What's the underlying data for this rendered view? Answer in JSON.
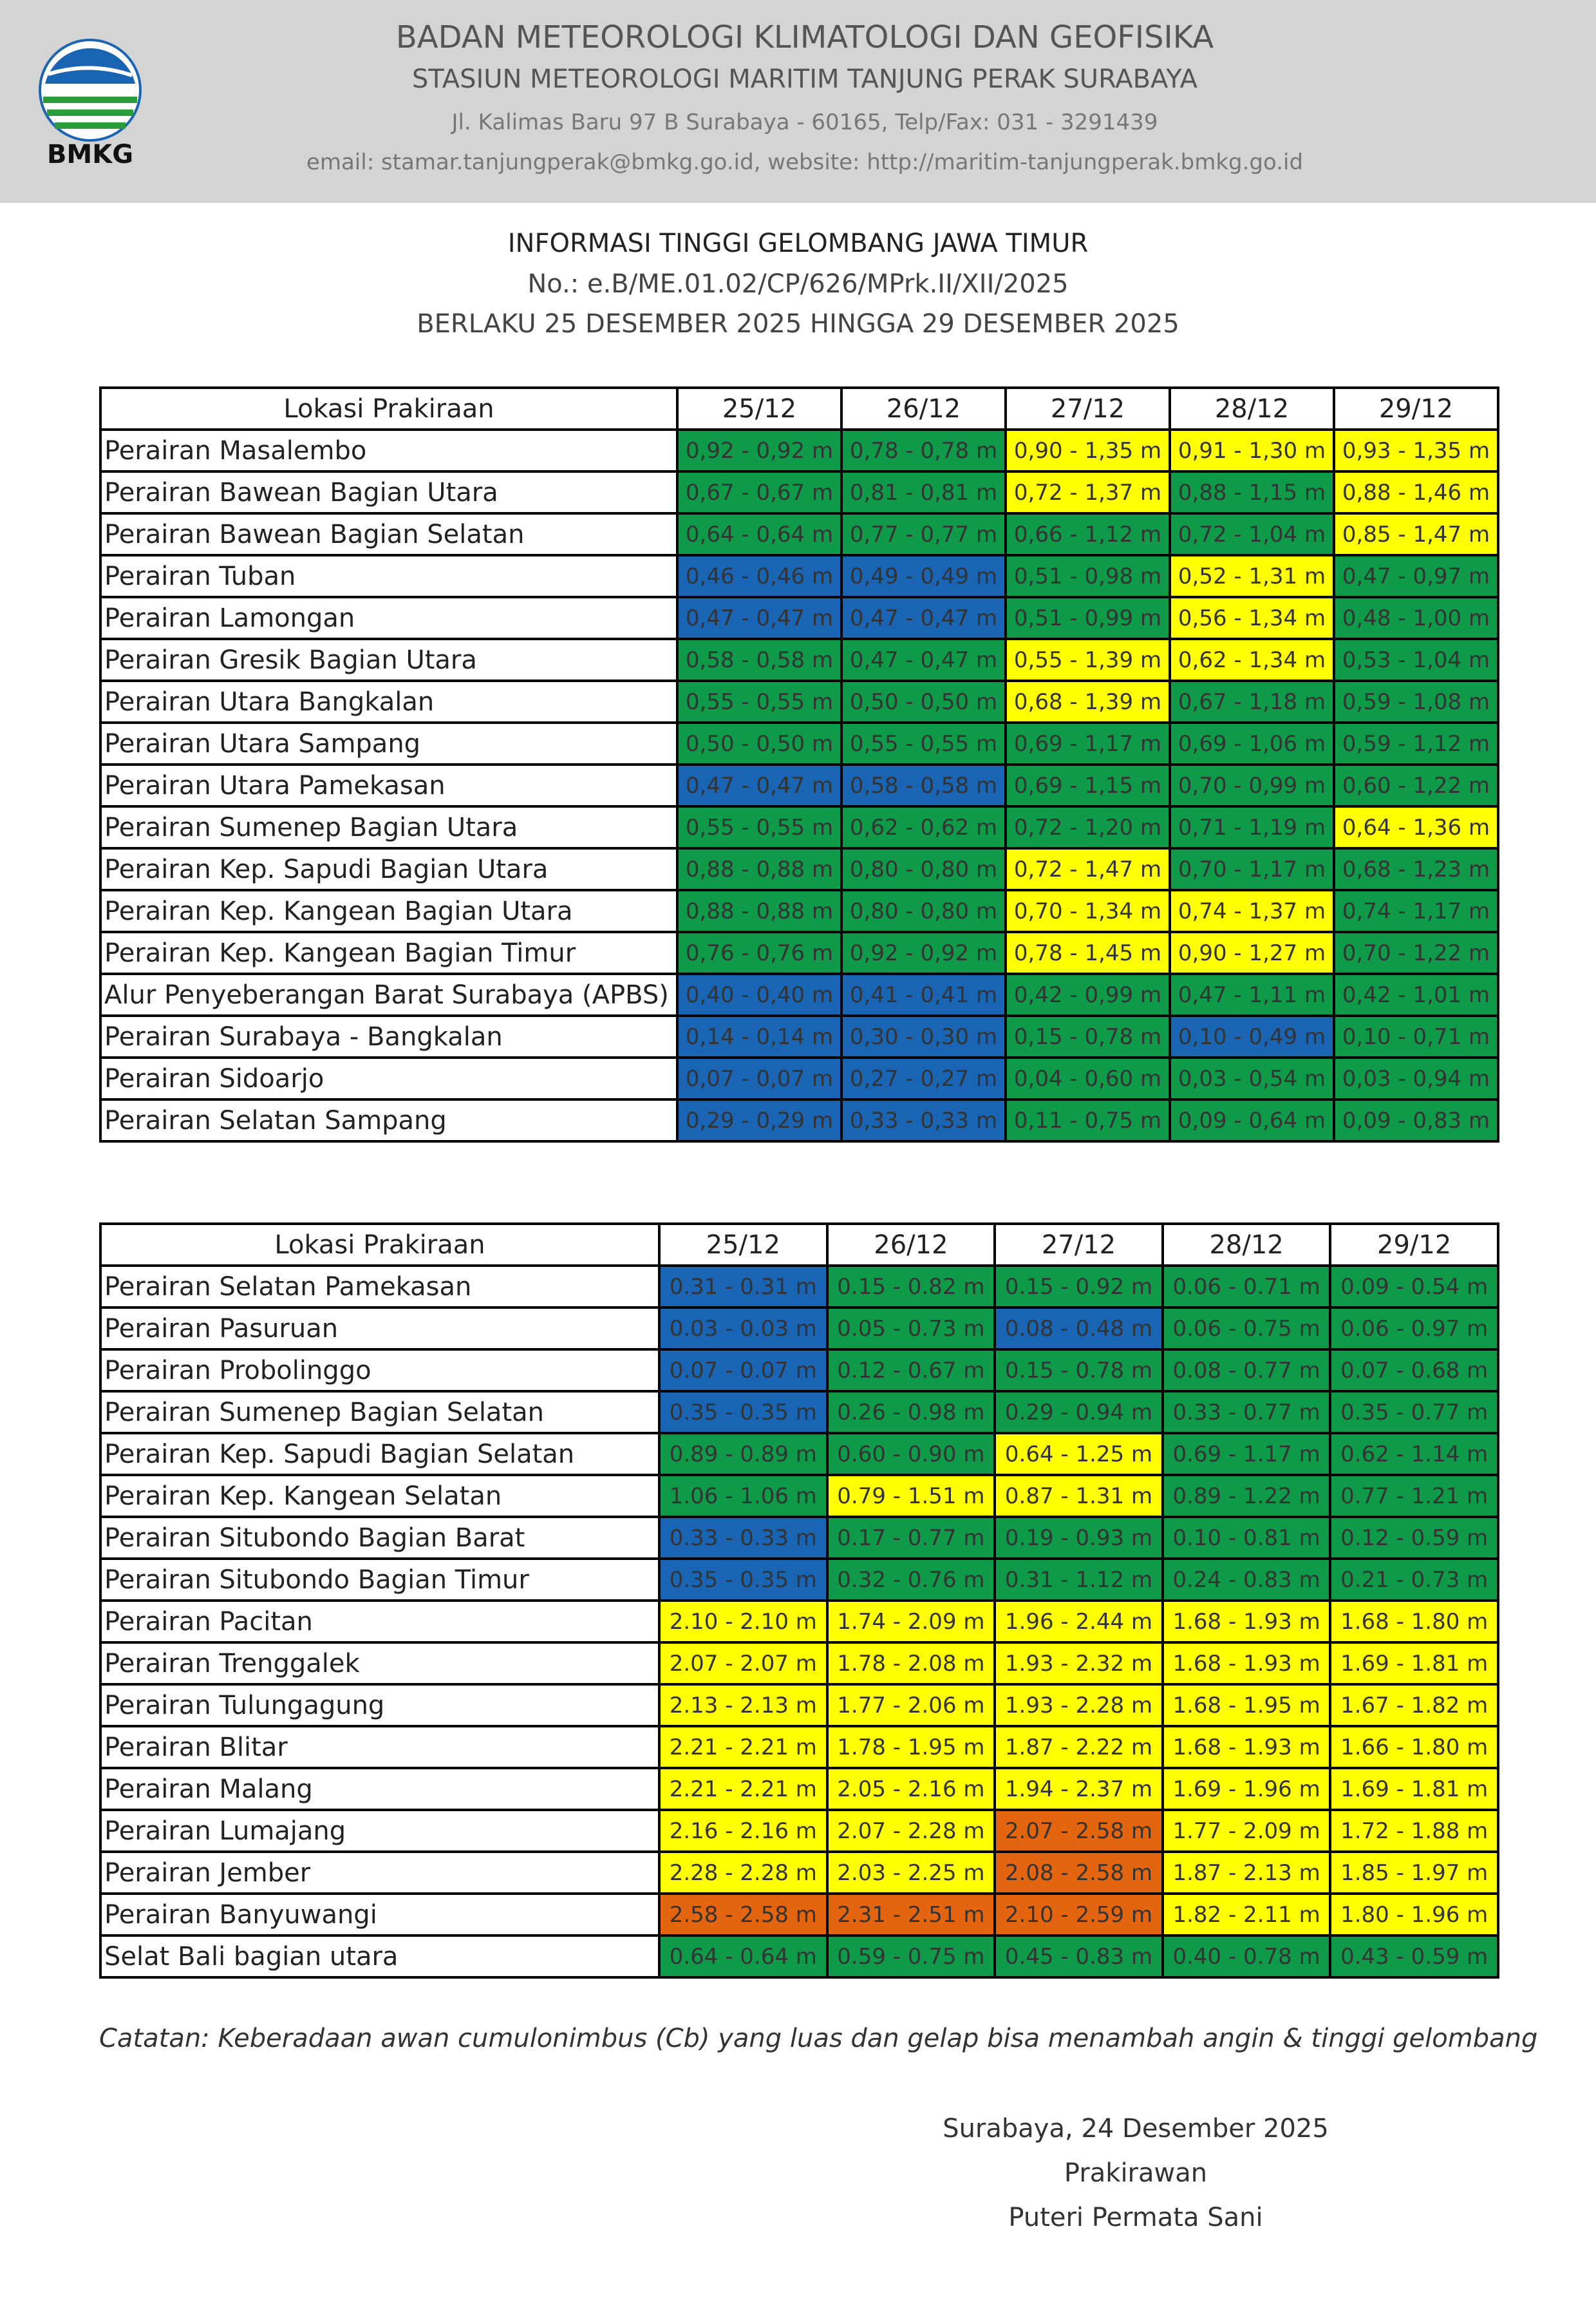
{
  "header": {
    "logo_text": "BMKG",
    "org": "BADAN METEOROLOGI KLIMATOLOGI DAN GEOFISIKA",
    "station": "STASIUN METEOROLOGI MARITIM TANJUNG PERAK SURABAYA",
    "address": "Jl. Kalimas Baru 97 B Surabaya - 60165, Telp/Fax: 031 - 3291439",
    "contact": "email: stamar.tanjungperak@bmkg.go.id, website: http://maritim-tanjungperak.bmkg.go.id"
  },
  "title": {
    "heading": "INFORMASI TINGGI GELOMBANG JAWA TIMUR",
    "number": "No.: e.B/ME.01.02/CP/626/MPrk.II/XII/2025",
    "validity": "BERLAKU 25 DESEMBER 2025 HINGGA 29 DESEMBER 2025"
  },
  "table1": {
    "headers": [
      "Lokasi Prakiraan",
      "25/12",
      "26/12",
      "27/12",
      "28/12",
      "29/12"
    ],
    "rows": [
      {
        "name": "Perairan Masalembo",
        "values": [
          "0,92 - 0,92 m",
          "0,78 - 0,78 m",
          "0,90 - 1,35 m",
          "0,91 - 1,30 m",
          "0,93 - 1,35 m"
        ],
        "colors": [
          "#0f9a4a",
          "#0f9a4a",
          "#ffff00",
          "#ffff00",
          "#ffff00"
        ]
      },
      {
        "name": "Perairan Bawean Bagian Utara",
        "values": [
          "0,67 - 0,67 m",
          "0,81 - 0,81 m",
          "0,72 - 1,37 m",
          "0,88 - 1,15 m",
          "0,88 - 1,46 m"
        ],
        "colors": [
          "#0f9a4a",
          "#0f9a4a",
          "#ffff00",
          "#0f9a4a",
          "#ffff00"
        ]
      },
      {
        "name": "Perairan Bawean Bagian Selatan",
        "values": [
          "0,64 - 0,64 m",
          "0,77 - 0,77 m",
          "0,66 - 1,12 m",
          "0,72 - 1,04 m",
          "0,85 - 1,47 m"
        ],
        "colors": [
          "#0f9a4a",
          "#0f9a4a",
          "#0f9a4a",
          "#0f9a4a",
          "#ffff00"
        ]
      },
      {
        "name": "Perairan Tuban",
        "values": [
          "0,46 - 0,46 m",
          "0,49 - 0,49 m",
          "0,51 - 0,98 m",
          "0,52 - 1,31 m",
          "0,47 - 0,97 m"
        ],
        "colors": [
          "#1a64b4",
          "#1a64b4",
          "#0f9a4a",
          "#ffff00",
          "#0f9a4a"
        ]
      },
      {
        "name": "Perairan Lamongan",
        "values": [
          "0,47 - 0,47 m",
          "0,47 - 0,47 m",
          "0,51 - 0,99 m",
          "0,56 - 1,34 m",
          "0,48 - 1,00 m"
        ],
        "colors": [
          "#1a64b4",
          "#1a64b4",
          "#0f9a4a",
          "#ffff00",
          "#0f9a4a"
        ]
      },
      {
        "name": "Perairan Gresik Bagian Utara",
        "values": [
          "0,58 - 0,58 m",
          "0,47 - 0,47 m",
          "0,55 - 1,39 m",
          "0,62 - 1,34 m",
          "0,53 - 1,04 m"
        ],
        "colors": [
          "#0f9a4a",
          "#0f9a4a",
          "#ffff00",
          "#ffff00",
          "#0f9a4a"
        ]
      },
      {
        "name": "Perairan Utara Bangkalan",
        "values": [
          "0,55 - 0,55 m",
          "0,50 - 0,50 m",
          "0,68 - 1,39 m",
          "0,67 - 1,18 m",
          "0,59 - 1,08 m"
        ],
        "colors": [
          "#0f9a4a",
          "#0f9a4a",
          "#ffff00",
          "#0f9a4a",
          "#0f9a4a"
        ]
      },
      {
        "name": "Perairan Utara Sampang",
        "values": [
          "0,50 - 0,50 m",
          "0,55 - 0,55 m",
          "0,69 - 1,17 m",
          "0,69 - 1,06 m",
          "0,59 - 1,12 m"
        ],
        "colors": [
          "#0f9a4a",
          "#0f9a4a",
          "#0f9a4a",
          "#0f9a4a",
          "#0f9a4a"
        ]
      },
      {
        "name": "Perairan Utara Pamekasan",
        "values": [
          "0,47 - 0,47 m",
          "0,58 - 0,58 m",
          "0,69 - 1,15 m",
          "0,70 - 0,99 m",
          "0,60 - 1,22 m"
        ],
        "colors": [
          "#1a64b4",
          "#1a64b4",
          "#0f9a4a",
          "#0f9a4a",
          "#0f9a4a"
        ]
      },
      {
        "name": "Perairan Sumenep Bagian Utara",
        "values": [
          "0,55 - 0,55 m",
          "0,62 - 0,62 m",
          "0,72 - 1,20 m",
          "0,71 - 1,19 m",
          "0,64 - 1,36 m"
        ],
        "colors": [
          "#0f9a4a",
          "#0f9a4a",
          "#0f9a4a",
          "#0f9a4a",
          "#ffff00"
        ]
      },
      {
        "name": "Perairan Kep. Sapudi Bagian Utara",
        "values": [
          "0,88 - 0,88 m",
          "0,80 - 0,80 m",
          "0,72 - 1,47 m",
          "0,70 - 1,17 m",
          "0,68 - 1,23 m"
        ],
        "colors": [
          "#0f9a4a",
          "#0f9a4a",
          "#ffff00",
          "#0f9a4a",
          "#0f9a4a"
        ]
      },
      {
        "name": "Perairan Kep. Kangean Bagian Utara",
        "values": [
          "0,88 - 0,88 m",
          "0,80 - 0,80 m",
          "0,70 - 1,34 m",
          "0,74 - 1,37 m",
          "0,74 - 1,17 m"
        ],
        "colors": [
          "#0f9a4a",
          "#0f9a4a",
          "#ffff00",
          "#ffff00",
          "#0f9a4a"
        ]
      },
      {
        "name": "Perairan Kep. Kangean  Bagian Timur",
        "values": [
          "0,76 - 0,76 m",
          "0,92 - 0,92 m",
          "0,78 - 1,45 m",
          "0,90 - 1,27 m",
          "0,70 - 1,22 m"
        ],
        "colors": [
          "#0f9a4a",
          "#0f9a4a",
          "#ffff00",
          "#ffff00",
          "#0f9a4a"
        ]
      },
      {
        "name": "Alur Penyeberangan Barat Surabaya (APBS)",
        "values": [
          "0,40 - 0,40 m",
          "0,41 - 0,41 m",
          "0,42 - 0,99 m",
          "0,47 - 1,11 m",
          "0,42 - 1,01 m"
        ],
        "colors": [
          "#1a64b4",
          "#1a64b4",
          "#0f9a4a",
          "#0f9a4a",
          "#0f9a4a"
        ]
      },
      {
        "name": "Perairan Surabaya - Bangkalan",
        "values": [
          "0,14 - 0,14 m",
          "0,30 - 0,30 m",
          "0,15 - 0,78 m",
          "0,10 - 0,49 m",
          "0,10 - 0,71 m"
        ],
        "colors": [
          "#1a64b4",
          "#1a64b4",
          "#0f9a4a",
          "#1a64b4",
          "#0f9a4a"
        ]
      },
      {
        "name": "Perairan Sidoarjo",
        "values": [
          "0,07 - 0,07 m",
          "0,27 - 0,27 m",
          "0,04 - 0,60 m",
          "0,03 - 0,54 m",
          "0,03 - 0,94 m"
        ],
        "colors": [
          "#1a64b4",
          "#1a64b4",
          "#0f9a4a",
          "#0f9a4a",
          "#0f9a4a"
        ]
      },
      {
        "name": "Perairan Selatan Sampang",
        "values": [
          "0,29 - 0,29 m",
          "0,33 - 0,33 m",
          "0,11 - 0,75 m",
          "0,09 - 0,64 m",
          "0,09 - 0,83 m"
        ],
        "colors": [
          "#1a64b4",
          "#1a64b4",
          "#0f9a4a",
          "#0f9a4a",
          "#0f9a4a"
        ]
      }
    ]
  },
  "table2": {
    "headers": [
      "Lokasi Prakiraan",
      "25/12",
      "26/12",
      "27/12",
      "28/12",
      "29/12"
    ],
    "rows": [
      {
        "name": "Perairan Selatan Pamekasan",
        "values": [
          "0.31 - 0.31 m",
          "0.15 - 0.82 m",
          "0.15 - 0.92 m",
          "0.06 - 0.71 m",
          "0.09 - 0.54 m"
        ],
        "colors": [
          "#1a64b4",
          "#0f9a4a",
          "#0f9a4a",
          "#0f9a4a",
          "#0f9a4a"
        ]
      },
      {
        "name": "Perairan Pasuruan",
        "values": [
          "0.03 - 0.03 m",
          "0.05 - 0.73 m",
          "0.08 - 0.48 m",
          "0.06 - 0.75 m",
          "0.06 - 0.97 m"
        ],
        "colors": [
          "#1a64b4",
          "#0f9a4a",
          "#1a64b4",
          "#0f9a4a",
          "#0f9a4a"
        ]
      },
      {
        "name": "Perairan Probolinggo",
        "values": [
          "0.07 - 0.07 m",
          "0.12 - 0.67 m",
          "0.15 - 0.78 m",
          "0.08 - 0.77 m",
          "0.07 - 0.68 m"
        ],
        "colors": [
          "#1a64b4",
          "#0f9a4a",
          "#0f9a4a",
          "#0f9a4a",
          "#0f9a4a"
        ]
      },
      {
        "name": "Perairan Sumenep Bagian Selatan",
        "values": [
          "0.35 - 0.35 m",
          "0.26 - 0.98 m",
          "0.29 - 0.94 m",
          "0.33 - 0.77 m",
          "0.35 - 0.77 m"
        ],
        "colors": [
          "#1a64b4",
          "#0f9a4a",
          "#0f9a4a",
          "#0f9a4a",
          "#0f9a4a"
        ]
      },
      {
        "name": "Perairan Kep. Sapudi Bagian Selatan",
        "values": [
          "0.89 - 0.89 m",
          "0.60 - 0.90 m",
          "0.64 - 1.25 m",
          "0.69 - 1.17 m",
          "0.62 - 1.14 m"
        ],
        "colors": [
          "#0f9a4a",
          "#0f9a4a",
          "#ffff00",
          "#0f9a4a",
          "#0f9a4a"
        ]
      },
      {
        "name": "Perairan Kep. Kangean Selatan",
        "values": [
          "1.06 - 1.06 m",
          "0.79 - 1.51 m",
          "0.87 - 1.31 m",
          "0.89 - 1.22 m",
          "0.77 - 1.21 m"
        ],
        "colors": [
          "#0f9a4a",
          "#ffff00",
          "#ffff00",
          "#0f9a4a",
          "#0f9a4a"
        ]
      },
      {
        "name": "Perairan Situbondo Bagian Barat",
        "values": [
          "0.33 - 0.33 m",
          "0.17 - 0.77 m",
          "0.19 - 0.93 m",
          "0.10 - 0.81 m",
          "0.12 - 0.59 m"
        ],
        "colors": [
          "#1a64b4",
          "#0f9a4a",
          "#0f9a4a",
          "#0f9a4a",
          "#0f9a4a"
        ]
      },
      {
        "name": "Perairan Situbondo Bagian Timur",
        "values": [
          "0.35 - 0.35 m",
          "0.32 - 0.76 m",
          "0.31 - 1.12 m",
          "0.24 - 0.83 m",
          "0.21 - 0.73 m"
        ],
        "colors": [
          "#1a64b4",
          "#0f9a4a",
          "#0f9a4a",
          "#0f9a4a",
          "#0f9a4a"
        ]
      },
      {
        "name": "Perairan Pacitan",
        "values": [
          "2.10 - 2.10 m",
          "1.74 - 2.09 m",
          "1.96 - 2.44 m",
          "1.68 - 1.93 m",
          "1.68 - 1.80 m"
        ],
        "colors": [
          "#ffff00",
          "#ffff00",
          "#ffff00",
          "#ffff00",
          "#ffff00"
        ]
      },
      {
        "name": "Perairan Trenggalek",
        "values": [
          "2.07 - 2.07 m",
          "1.78 - 2.08 m",
          "1.93 - 2.32 m",
          "1.68 - 1.93 m",
          "1.69 - 1.81 m"
        ],
        "colors": [
          "#ffff00",
          "#ffff00",
          "#ffff00",
          "#ffff00",
          "#ffff00"
        ]
      },
      {
        "name": "Perairan Tulungagung",
        "values": [
          "2.13 - 2.13 m",
          "1.77 - 2.06 m",
          "1.93 - 2.28 m",
          "1.68 - 1.95 m",
          "1.67 - 1.82 m"
        ],
        "colors": [
          "#ffff00",
          "#ffff00",
          "#ffff00",
          "#ffff00",
          "#ffff00"
        ]
      },
      {
        "name": "Perairan Blitar",
        "values": [
          "2.21 - 2.21 m",
          "1.78 - 1.95 m",
          "1.87 - 2.22 m",
          "1.68 - 1.93 m",
          "1.66 - 1.80 m"
        ],
        "colors": [
          "#ffff00",
          "#ffff00",
          "#ffff00",
          "#ffff00",
          "#ffff00"
        ]
      },
      {
        "name": "Perairan Malang",
        "values": [
          "2.21 - 2.21 m",
          "2.05 - 2.16 m",
          "1.94 - 2.37 m",
          "1.69 - 1.96 m",
          "1.69 - 1.81 m"
        ],
        "colors": [
          "#ffff00",
          "#ffff00",
          "#ffff00",
          "#ffff00",
          "#ffff00"
        ]
      },
      {
        "name": "Perairan Lumajang",
        "values": [
          "2.16 - 2.16 m",
          "2.07 - 2.28 m",
          "2.07 - 2.58 m",
          "1.77 - 2.09 m",
          "1.72 - 1.88 m"
        ],
        "colors": [
          "#ffff00",
          "#ffff00",
          "#e4650f",
          "#ffff00",
          "#ffff00"
        ]
      },
      {
        "name": "Perairan Jember",
        "values": [
          "2.28 - 2.28 m",
          "2.03 - 2.25 m",
          "2.08 - 2.58 m",
          "1.87 - 2.13 m",
          "1.85 - 1.97 m"
        ],
        "colors": [
          "#ffff00",
          "#ffff00",
          "#e4650f",
          "#ffff00",
          "#ffff00"
        ]
      },
      {
        "name": "Perairan Banyuwangi",
        "values": [
          "2.58 - 2.58 m",
          "2.31 - 2.51 m",
          "2.10 - 2.59 m",
          "1.82 - 2.11 m",
          "1.80 - 1.96 m"
        ],
        "colors": [
          "#e4650f",
          "#e4650f",
          "#e4650f",
          "#ffff00",
          "#ffff00"
        ]
      },
      {
        "name": "Selat Bali bagian utara",
        "values": [
          "0.64 - 0.64 m",
          "0.59 - 0.75 m",
          "0.45 - 0.83 m",
          "0.40 - 0.78 m",
          "0.43 - 0.59 m"
        ],
        "colors": [
          "#0f9a4a",
          "#0f9a4a",
          "#0f9a4a",
          "#0f9a4a",
          "#0f9a4a"
        ]
      }
    ]
  },
  "note": "Catatan: Keberadaan awan cumulonimbus (Cb) yang luas dan gelap bisa menambah angin & tinggi gelombang",
  "signature": {
    "place_date": "Surabaya, 24 Desember 2025",
    "role": "Prakirawan",
    "name": "Puteri Permata Sani"
  }
}
